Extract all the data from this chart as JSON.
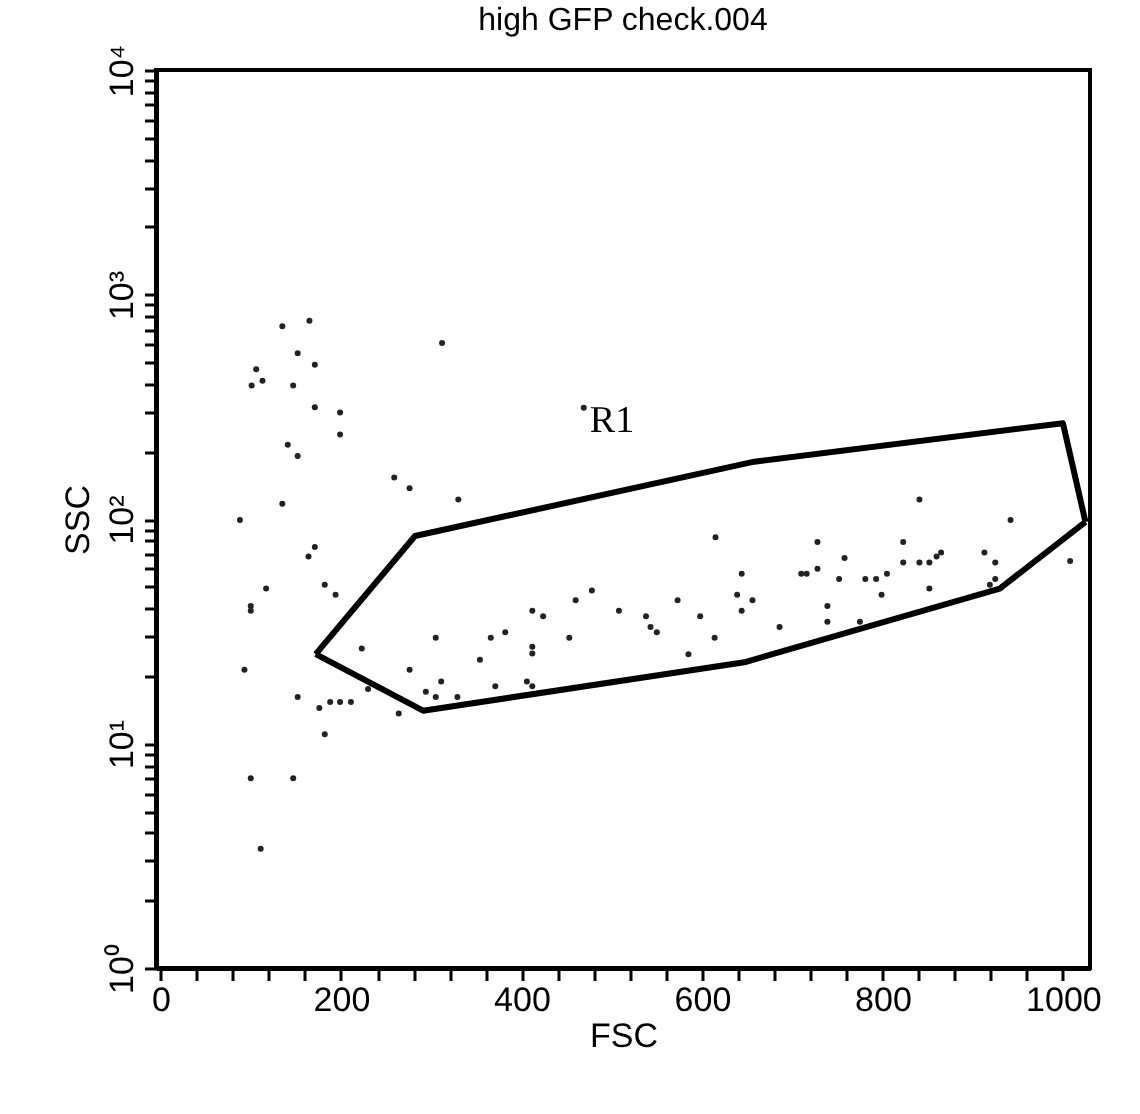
{
  "chart_data": {
    "type": "scatter",
    "title": "high GFP check.004",
    "xlabel": "FSC",
    "ylabel": "SSC",
    "log": "y",
    "marker": "circle",
    "xlim": [
      -5,
      1030
    ],
    "ylim": [
      1,
      10000
    ],
    "xticks": [
      0,
      {
        "value": 40,
        "label": null
      },
      {
        "value": 80,
        "label": null
      },
      {
        "value": 120,
        "label": null
      },
      {
        "value": 160,
        "label": null
      },
      200,
      {
        "value": 240,
        "label": null
      },
      {
        "value": 280,
        "label": null
      },
      {
        "value": 320,
        "label": null
      },
      {
        "value": 360,
        "label": null
      },
      400,
      {
        "value": 440,
        "label": null
      },
      {
        "value": 480,
        "label": null
      },
      {
        "value": 520,
        "label": null
      },
      {
        "value": 560,
        "label": null
      },
      600,
      {
        "value": 640,
        "label": null
      },
      {
        "value": 680,
        "label": null
      },
      {
        "value": 720,
        "label": null
      },
      {
        "value": 760,
        "label": null
      },
      800,
      {
        "value": 840,
        "label": null
      },
      {
        "value": 880,
        "label": null
      },
      {
        "value": 920,
        "label": null
      },
      {
        "value": 960,
        "label": null
      },
      1000
    ],
    "yticks": [
      {
        "value": 1,
        "label": "10⁰"
      },
      {
        "value": 2,
        "label": null
      },
      {
        "value": 3,
        "label": null
      },
      {
        "value": 4,
        "label": null
      },
      {
        "value": 5,
        "label": null
      },
      {
        "value": 6,
        "label": null
      },
      {
        "value": 7,
        "label": null
      },
      {
        "value": 8,
        "label": null
      },
      {
        "value": 9,
        "label": null
      },
      {
        "value": 10,
        "label": "10¹"
      },
      {
        "value": 20,
        "label": null
      },
      {
        "value": 30,
        "label": null
      },
      {
        "value": 40,
        "label": null
      },
      {
        "value": 50,
        "label": null
      },
      {
        "value": 60,
        "label": null
      },
      {
        "value": 70,
        "label": null
      },
      {
        "value": 80,
        "label": null
      },
      {
        "value": 90,
        "label": null
      },
      {
        "value": 100,
        "label": "10²"
      },
      {
        "value": 200,
        "label": null
      },
      {
        "value": 300,
        "label": null
      },
      {
        "value": 400,
        "label": null
      },
      {
        "value": 500,
        "label": null
      },
      {
        "value": 600,
        "label": null
      },
      {
        "value": 700,
        "label": null
      },
      {
        "value": 800,
        "label": null
      },
      {
        "value": 900,
        "label": null
      },
      {
        "value": 1000,
        "label": "10³"
      },
      {
        "value": 2000,
        "label": null
      },
      {
        "value": 3000,
        "label": null
      },
      {
        "value": 4000,
        "label": null
      },
      {
        "value": 5000,
        "label": null
      },
      {
        "value": 6000,
        "label": null
      },
      {
        "value": 7000,
        "label": null
      },
      {
        "value": 8000,
        "label": null
      },
      {
        "value": 9000,
        "label": null
      },
      {
        "value": 10000,
        "label": "10⁴"
      }
    ],
    "annotations": [
      "R1"
    ],
    "series": [
      {
        "color": "#222222",
        "x": [
          135,
          165,
          312,
          152,
          171,
          106,
          101,
          113,
          147,
          171,
          199,
          199,
          141,
          152,
          259,
          276,
          330,
          135,
          88,
          171,
          164,
          117,
          182,
          194,
          100,
          100,
          223,
          305,
          93,
          276,
          354,
          366,
          382,
          412,
          424,
          412,
          412,
          152,
          176,
          188,
          199,
          211,
          230,
          264,
          294,
          305,
          311,
          329,
          371,
          406,
          412,
          182,
          100,
          147,
          111,
          841,
          942,
          615,
          728,
          823,
          758,
          865,
          860,
          852,
          823,
          841,
          913,
          925,
          1008,
          805,
          644,
          710,
          716,
          728,
          752,
          781,
          793,
          925,
          919,
          852,
          799,
          639,
          656,
          739,
          644,
          739,
          775,
          686,
          573,
          598,
          538,
          543,
          550,
          614,
          585,
          508,
          478,
          460,
          453,
          469
        ],
        "values": [
          722,
          763,
          608,
          548,
          487,
          465,
          393,
          413,
          393,
          315,
          298,
          238,
          214,
          191,
          153,
          137,
          122,
          117,
          99,
          75,
          68,
          49,
          51,
          46,
          41,
          39,
          26.5,
          29.6,
          21.3,
          21.3,
          23.6,
          29.6,
          31.3,
          39,
          36.9,
          27,
          25.2,
          16.1,
          14.4,
          15.3,
          15.3,
          15.3,
          17.5,
          13.6,
          17,
          16.1,
          18.9,
          16.1,
          18,
          18.9,
          18,
          11,
          7,
          7,
          3.4,
          122,
          99,
          83,
          79,
          79,
          67,
          71,
          68,
          64,
          64,
          64,
          71,
          64,
          65,
          57,
          57,
          57,
          57,
          60,
          54,
          54,
          54,
          54,
          51,
          49,
          46,
          46,
          43.5,
          41,
          39,
          34.9,
          34.9,
          33,
          43.5,
          36.9,
          36.9,
          33,
          31.3,
          29.6,
          25,
          39,
          48,
          43.5,
          29.6,
          313
        ]
      },
      {
        "type": "line",
        "marker": "none",
        "color": "#000000",
        "x": [
          172,
          282,
          658,
          1000,
          1025
        ],
        "values": [
          25,
          84,
          180,
          267,
          97
        ]
      },
      {
        "type": "line",
        "marker": "none",
        "color": "#000000",
        "x": [
          172,
          291,
          647,
          930,
          1025
        ],
        "values": [
          25,
          14,
          23,
          49,
          97
        ]
      }
    ]
  }
}
